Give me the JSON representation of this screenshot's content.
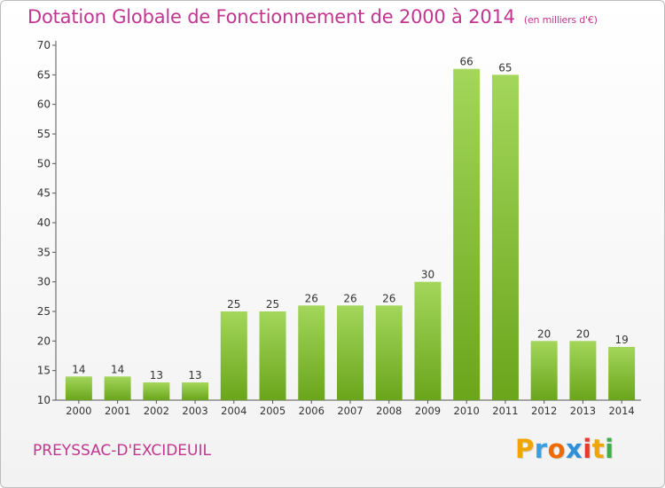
{
  "title": "Dotation Globale de Fonctionnement de 2000 à 2014",
  "subtitle": "(en milliers d'€)",
  "place": "PREYSSAC-D'EXCIDEUIL",
  "logo": {
    "letters": [
      "P",
      "r",
      "o",
      "x",
      "i",
      "t",
      "i"
    ],
    "colors": [
      "#f0a500",
      "#3a9ee0",
      "#f06a00",
      "#2f8fd8",
      "#e83a2a",
      "#f0a500",
      "#3fae49"
    ]
  },
  "colors": {
    "bar_light": "#a3d65a",
    "bar_dark": "#6aa51c",
    "title": "#c2368f"
  },
  "chart_data": {
    "type": "bar",
    "categories": [
      "2000",
      "2001",
      "2002",
      "2003",
      "2004",
      "2005",
      "2006",
      "2007",
      "2008",
      "2009",
      "2010",
      "2011",
      "2012",
      "2013",
      "2014"
    ],
    "values": [
      14,
      14,
      13,
      13,
      25,
      25,
      26,
      26,
      26,
      30,
      66,
      65,
      20,
      20,
      19
    ],
    "data_labels": [
      "14",
      "14",
      "13",
      "13",
      "25",
      "25",
      "26",
      "26",
      "26",
      "30",
      "66",
      "65",
      "20",
      "20",
      "19"
    ],
    "title": "Dotation Globale de Fonctionnement de 2000 à 2014",
    "subtitle": "(en milliers d'€)",
    "xlabel": "",
    "ylabel": "",
    "ylim": [
      10,
      70
    ],
    "yticks": [
      10,
      15,
      20,
      25,
      30,
      35,
      40,
      45,
      50,
      55,
      60,
      65,
      70
    ],
    "ytick_labels": [
      "10",
      "15",
      "20",
      "25",
      "30",
      "35",
      "40",
      "45",
      "50",
      "55",
      "60",
      "65",
      "70"
    ],
    "grid": false,
    "legend": "none"
  }
}
